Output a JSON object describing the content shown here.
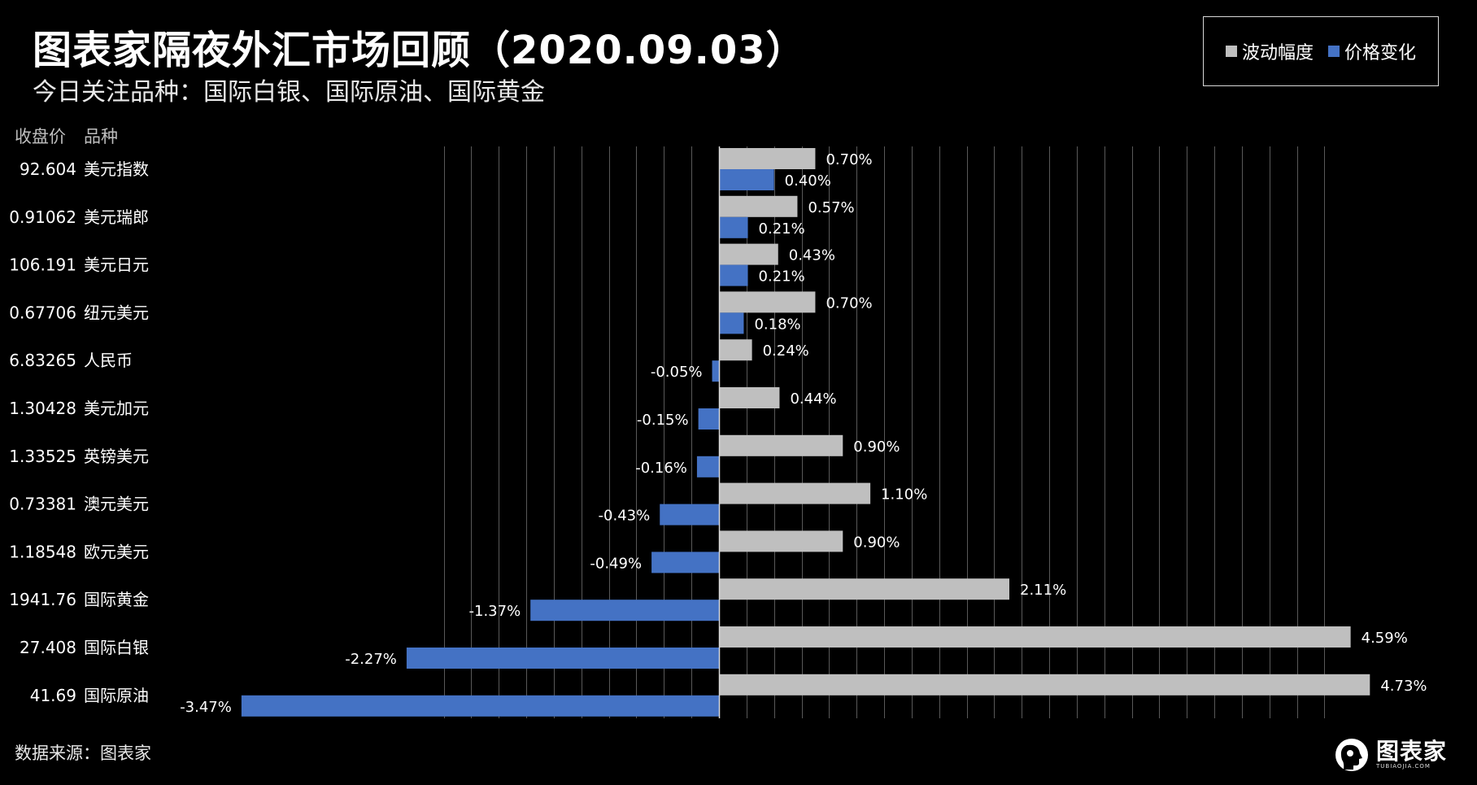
{
  "title": "图表家隔夜外汇市场回顾（2020.09.03）",
  "subtitle": "今日关注品种：国际白银、国际原油、国际黄金",
  "columns": {
    "close": "收盘价",
    "name": "品种"
  },
  "source": "数据来源：图表家",
  "logo": {
    "main": "图表家",
    "url": "TUBIAOJIA.COM"
  },
  "colors": {
    "volatility": "#BFBFBF",
    "change": "#4472C4",
    "grid": "#595959",
    "background": "#000000"
  },
  "chart_data": {
    "type": "bar",
    "orientation": "horizontal",
    "legend_position": "top-right",
    "grid": true,
    "xlim": [
      -3.47,
      4.73
    ],
    "categories": [
      "美元指数",
      "美元瑞郎",
      "美元日元",
      "纽元美元",
      "人民币",
      "美元加元",
      "英镑美元",
      "澳元美元",
      "欧元美元",
      "国际黄金",
      "国际白银",
      "国际原油"
    ],
    "close_prices": [
      "92.604",
      "0.91062",
      "106.191",
      "0.67706",
      "6.83265",
      "1.30428",
      "1.33525",
      "0.73381",
      "1.18548",
      "1941.76",
      "27.408",
      "41.69"
    ],
    "series": [
      {
        "name": "波动幅度",
        "values": [
          0.7,
          0.57,
          0.43,
          0.7,
          0.24,
          0.44,
          0.9,
          1.1,
          0.9,
          2.11,
          4.59,
          4.73
        ],
        "labels": [
          "0.70%",
          "0.57%",
          "0.43%",
          "0.70%",
          "0.24%",
          "0.44%",
          "0.90%",
          "1.10%",
          "0.90%",
          "2.11%",
          "4.59%",
          "4.73%"
        ]
      },
      {
        "name": "价格变化",
        "values": [
          0.4,
          0.21,
          0.21,
          0.18,
          -0.05,
          -0.15,
          -0.16,
          -0.43,
          -0.49,
          -1.37,
          -2.27,
          -3.47
        ],
        "labels": [
          "0.40%",
          "0.21%",
          "0.21%",
          "0.18%",
          "-0.05%",
          "-0.15%",
          "-0.16%",
          "-0.43%",
          "-0.49%",
          "-1.37%",
          "-2.27%",
          "-3.47%"
        ]
      }
    ]
  }
}
